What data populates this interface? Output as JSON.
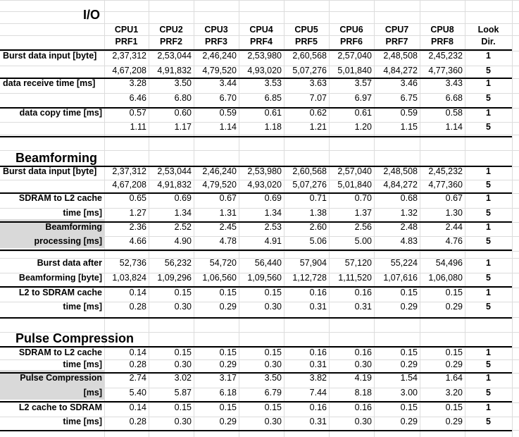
{
  "sections": {
    "io": "I/O",
    "bf": "Beamforming",
    "pc": "Pulse Compression"
  },
  "headers": [
    {
      "l1": "CPU1",
      "l2": "PRF1"
    },
    {
      "l1": "CPU2",
      "l2": "PRF2"
    },
    {
      "l1": "CPU3",
      "l2": "PRF3"
    },
    {
      "l1": "CPU4",
      "l2": "PRF4"
    },
    {
      "l1": "CPU5",
      "l2": "PRF5"
    },
    {
      "l1": "CPU6",
      "l2": "PRF6"
    },
    {
      "l1": "CPU7",
      "l2": "PRF7"
    },
    {
      "l1": "CPU8",
      "l2": "PRF8"
    },
    {
      "l1": "Look",
      "l2": "Dir."
    }
  ],
  "rows": [
    {
      "label": "Burst data input [byte]",
      "align": "left",
      "r1": [
        "2,37,312",
        "2,53,044",
        "2,46,240",
        "2,53,980",
        "2,60,568",
        "2,57,040",
        "2,48,508",
        "2,45,232"
      ],
      "look1": "1",
      "r2": [
        "4,67,208",
        "4,91,832",
        "4,79,520",
        "4,93,020",
        "5,07,276",
        "5,01,840",
        "4,84,272",
        "4,77,360"
      ],
      "look2": "5"
    },
    {
      "label": "data receive time [ms]",
      "align": "left",
      "r1": [
        "3.28",
        "3.50",
        "3.44",
        "3.53",
        "3.63",
        "3.57",
        "3.46",
        "3.43"
      ],
      "look1": "1",
      "r2": [
        "6.46",
        "6.80",
        "6.70",
        "6.85",
        "7.07",
        "6.97",
        "6.75",
        "6.68"
      ],
      "look2": "5"
    },
    {
      "label": "data copy time [ms]",
      "align": "right",
      "r1": [
        "0.57",
        "0.60",
        "0.59",
        "0.61",
        "0.62",
        "0.61",
        "0.59",
        "0.58"
      ],
      "look1": "1",
      "r2": [
        "1.11",
        "1.17",
        "1.14",
        "1.18",
        "1.21",
        "1.20",
        "1.15",
        "1.14"
      ],
      "look2": "5"
    },
    {
      "label": "Burst data input [byte]",
      "align": "left",
      "r1": [
        "2,37,312",
        "2,53,044",
        "2,46,240",
        "2,53,980",
        "2,60,568",
        "2,57,040",
        "2,48,508",
        "2,45,232"
      ],
      "look1": "1",
      "r2": [
        "4,67,208",
        "4,91,832",
        "4,79,520",
        "4,93,020",
        "5,07,276",
        "5,01,840",
        "4,84,272",
        "4,77,360"
      ],
      "look2": "5"
    },
    {
      "label1": "SDRAM to L2 cache",
      "label2": "time [ms]",
      "align": "right",
      "r1": [
        "0.65",
        "0.69",
        "0.67",
        "0.69",
        "0.71",
        "0.70",
        "0.68",
        "0.67"
      ],
      "look1": "1",
      "r2": [
        "1.27",
        "1.34",
        "1.31",
        "1.34",
        "1.38",
        "1.37",
        "1.32",
        "1.30"
      ],
      "look2": "5"
    },
    {
      "label1": "Beamforming",
      "label2": "processing [ms]",
      "align": "right",
      "shaded": true,
      "r1": [
        "2.36",
        "2.52",
        "2.45",
        "2.53",
        "2.60",
        "2.56",
        "2.48",
        "2.44"
      ],
      "look1": "1",
      "r2": [
        "4.66",
        "4.90",
        "4.78",
        "4.91",
        "5.06",
        "5.00",
        "4.83",
        "4.76"
      ],
      "look2": "5"
    },
    {
      "label1": "Burst data after",
      "label2": "Beamforming [byte]",
      "align": "right",
      "r1": [
        "52,736",
        "56,232",
        "54,720",
        "56,440",
        "57,904",
        "57,120",
        "55,224",
        "54,496"
      ],
      "look1": "1",
      "r2": [
        "1,03,824",
        "1,09,296",
        "1,06,560",
        "1,09,560",
        "1,12,728",
        "1,11,520",
        "1,07,616",
        "1,06,080"
      ],
      "look2": "5"
    },
    {
      "label1": "L2 to SDRAM cache",
      "label2": "time [ms]",
      "align": "right",
      "r1": [
        "0.14",
        "0.15",
        "0.15",
        "0.15",
        "0.16",
        "0.16",
        "0.15",
        "0.15"
      ],
      "look1": "1",
      "r2": [
        "0.28",
        "0.30",
        "0.29",
        "0.30",
        "0.31",
        "0.31",
        "0.29",
        "0.29"
      ],
      "look2": "5"
    },
    {
      "label1": "SDRAM to L2 cache",
      "label2": "time [ms]",
      "align": "right",
      "r1": [
        "0.14",
        "0.15",
        "0.15",
        "0.15",
        "0.16",
        "0.16",
        "0.15",
        "0.15"
      ],
      "look1": "1",
      "r2": [
        "0.28",
        "0.30",
        "0.29",
        "0.30",
        "0.31",
        "0.30",
        "0.29",
        "0.29"
      ],
      "look2": "5"
    },
    {
      "label1": "Pulse Compression",
      "label2": "[ms]",
      "align": "right",
      "shaded": true,
      "r1": [
        "2.74",
        "3.02",
        "3.17",
        "3.50",
        "3.82",
        "4.19",
        "1.54",
        "1.64"
      ],
      "look1": "1",
      "r2": [
        "5.40",
        "5.87",
        "6.18",
        "6.79",
        "7.44",
        "8.18",
        "3.00",
        "3.20"
      ],
      "look2": "5"
    },
    {
      "label1": "L2 cache to SDRAM",
      "label2": "time [ms]",
      "align": "right",
      "r1": [
        "0.14",
        "0.15",
        "0.15",
        "0.15",
        "0.16",
        "0.16",
        "0.15",
        "0.15"
      ],
      "look1": "1",
      "r2": [
        "0.28",
        "0.30",
        "0.29",
        "0.30",
        "0.31",
        "0.30",
        "0.29",
        "0.29"
      ],
      "look2": "5"
    }
  ]
}
